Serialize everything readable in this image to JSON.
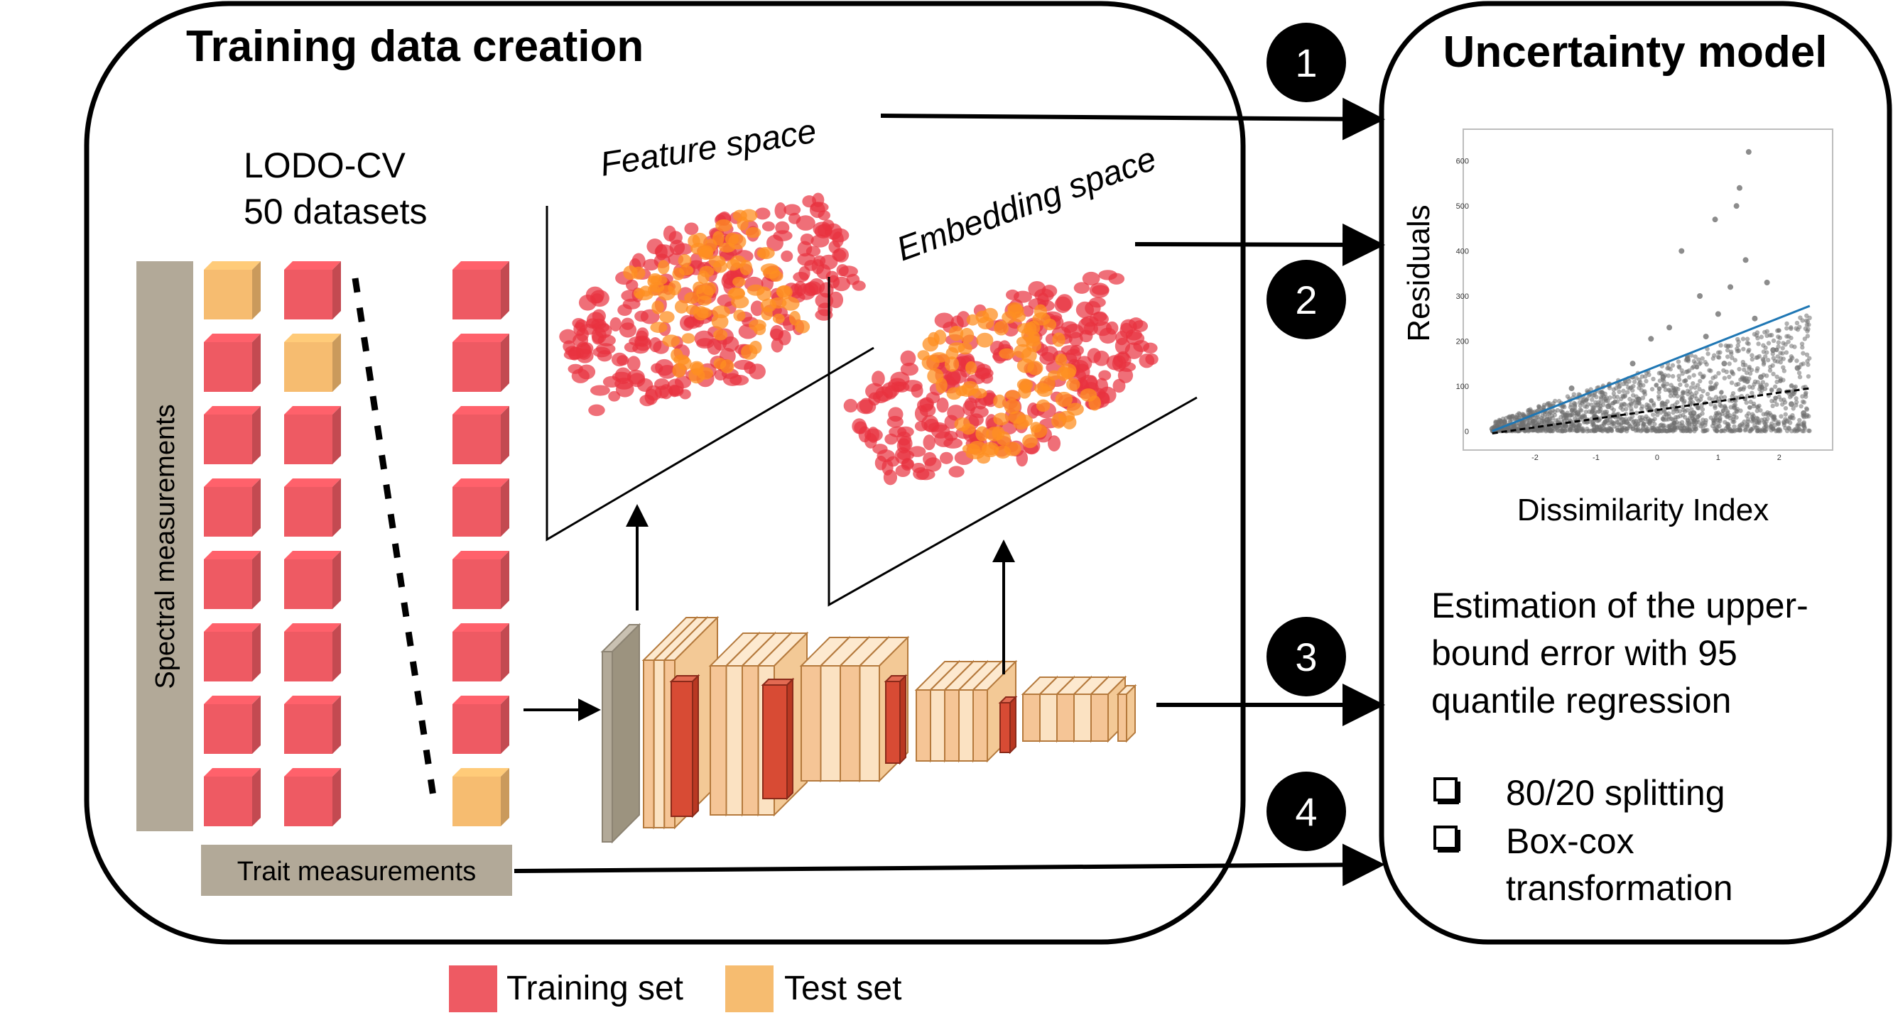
{
  "left_panel": {
    "title": "Training data creation",
    "lodo_line1": "LODO-CV",
    "lodo_line2": "50 datasets",
    "spectral_label": "Spectral measurements",
    "trait_label": "Trait measurements",
    "feature_space_label": "Feature space",
    "embedding_space_label": "Embedding  space"
  },
  "right_panel": {
    "title": "Uncertainty model",
    "description_lines": [
      "Estimation of the upper-",
      "bound error with 95",
      "quantile regression"
    ],
    "checklist": [
      {
        "lines": [
          "80/20 splitting"
        ]
      },
      {
        "lines": [
          "Box-cox",
          "transformation"
        ]
      }
    ]
  },
  "steps": [
    "1",
    "2",
    "3",
    "4"
  ],
  "legend": [
    {
      "label": "Training set",
      "color": "#ee5a63"
    },
    {
      "label": "Test set",
      "color": "#f6bc70"
    }
  ],
  "colors": {
    "training": "#ee5a63",
    "test": "#f6bc70",
    "gray_bar": "#b2a998",
    "scatter_red": "#e8323e",
    "scatter_orange": "#fd8f22",
    "point_gray": "#6f6f6f",
    "fit_blue": "#1f77b4"
  },
  "grid": {
    "columns": 3,
    "rows": 8,
    "test_cell_per_column": [
      0,
      1,
      7
    ]
  },
  "chart_data": {
    "type": "scatter",
    "title": "",
    "xlabel": "Dissimilarity Index",
    "ylabel": "Residuals",
    "xlim": [
      -3,
      2.7
    ],
    "ylim": [
      -20,
      650
    ],
    "x_ticks": [
      "-2",
      "-1",
      "0",
      "1",
      "2"
    ],
    "y_ticks": [
      "0",
      "100",
      "200",
      "300",
      "400",
      "500",
      "600"
    ],
    "series": [
      {
        "kind": "points",
        "points": [
          [
            -2.7,
            5
          ],
          [
            -2.5,
            10
          ],
          [
            -2.2,
            18
          ],
          [
            -2.0,
            8
          ],
          [
            -1.8,
            25
          ],
          [
            -1.5,
            12
          ],
          [
            -1.3,
            40
          ],
          [
            -1.0,
            30
          ],
          [
            -0.8,
            55
          ],
          [
            -0.5,
            20
          ],
          [
            -0.3,
            70
          ],
          [
            0.0,
            45
          ],
          [
            0.1,
            120
          ],
          [
            0.3,
            85
          ],
          [
            0.5,
            160
          ],
          [
            0.6,
            40
          ],
          [
            0.8,
            210
          ],
          [
            0.9,
            95
          ],
          [
            1.0,
            260
          ],
          [
            1.1,
            150
          ],
          [
            1.2,
            320
          ],
          [
            1.3,
            500
          ],
          [
            1.35,
            540
          ],
          [
            1.45,
            380
          ],
          [
            1.5,
            620
          ],
          [
            1.6,
            250
          ],
          [
            1.7,
            120
          ],
          [
            1.9,
            180
          ],
          [
            2.0,
            90
          ],
          [
            2.2,
            60
          ],
          [
            2.4,
            40
          ],
          [
            -0.4,
            150
          ],
          [
            0.2,
            230
          ],
          [
            0.7,
            300
          ],
          [
            -1.4,
            95
          ],
          [
            1.8,
            330
          ],
          [
            2.3,
            140
          ],
          [
            0.95,
            470
          ],
          [
            0.4,
            400
          ],
          [
            -0.1,
            205
          ]
        ]
      },
      {
        "kind": "line",
        "quantile": 0.95,
        "points": [
          [
            -2.7,
            0
          ],
          [
            2.5,
            278
          ]
        ]
      },
      {
        "kind": "line",
        "quantile": 0.5,
        "points": [
          [
            -2.7,
            -5
          ],
          [
            2.5,
            95
          ]
        ]
      }
    ]
  }
}
